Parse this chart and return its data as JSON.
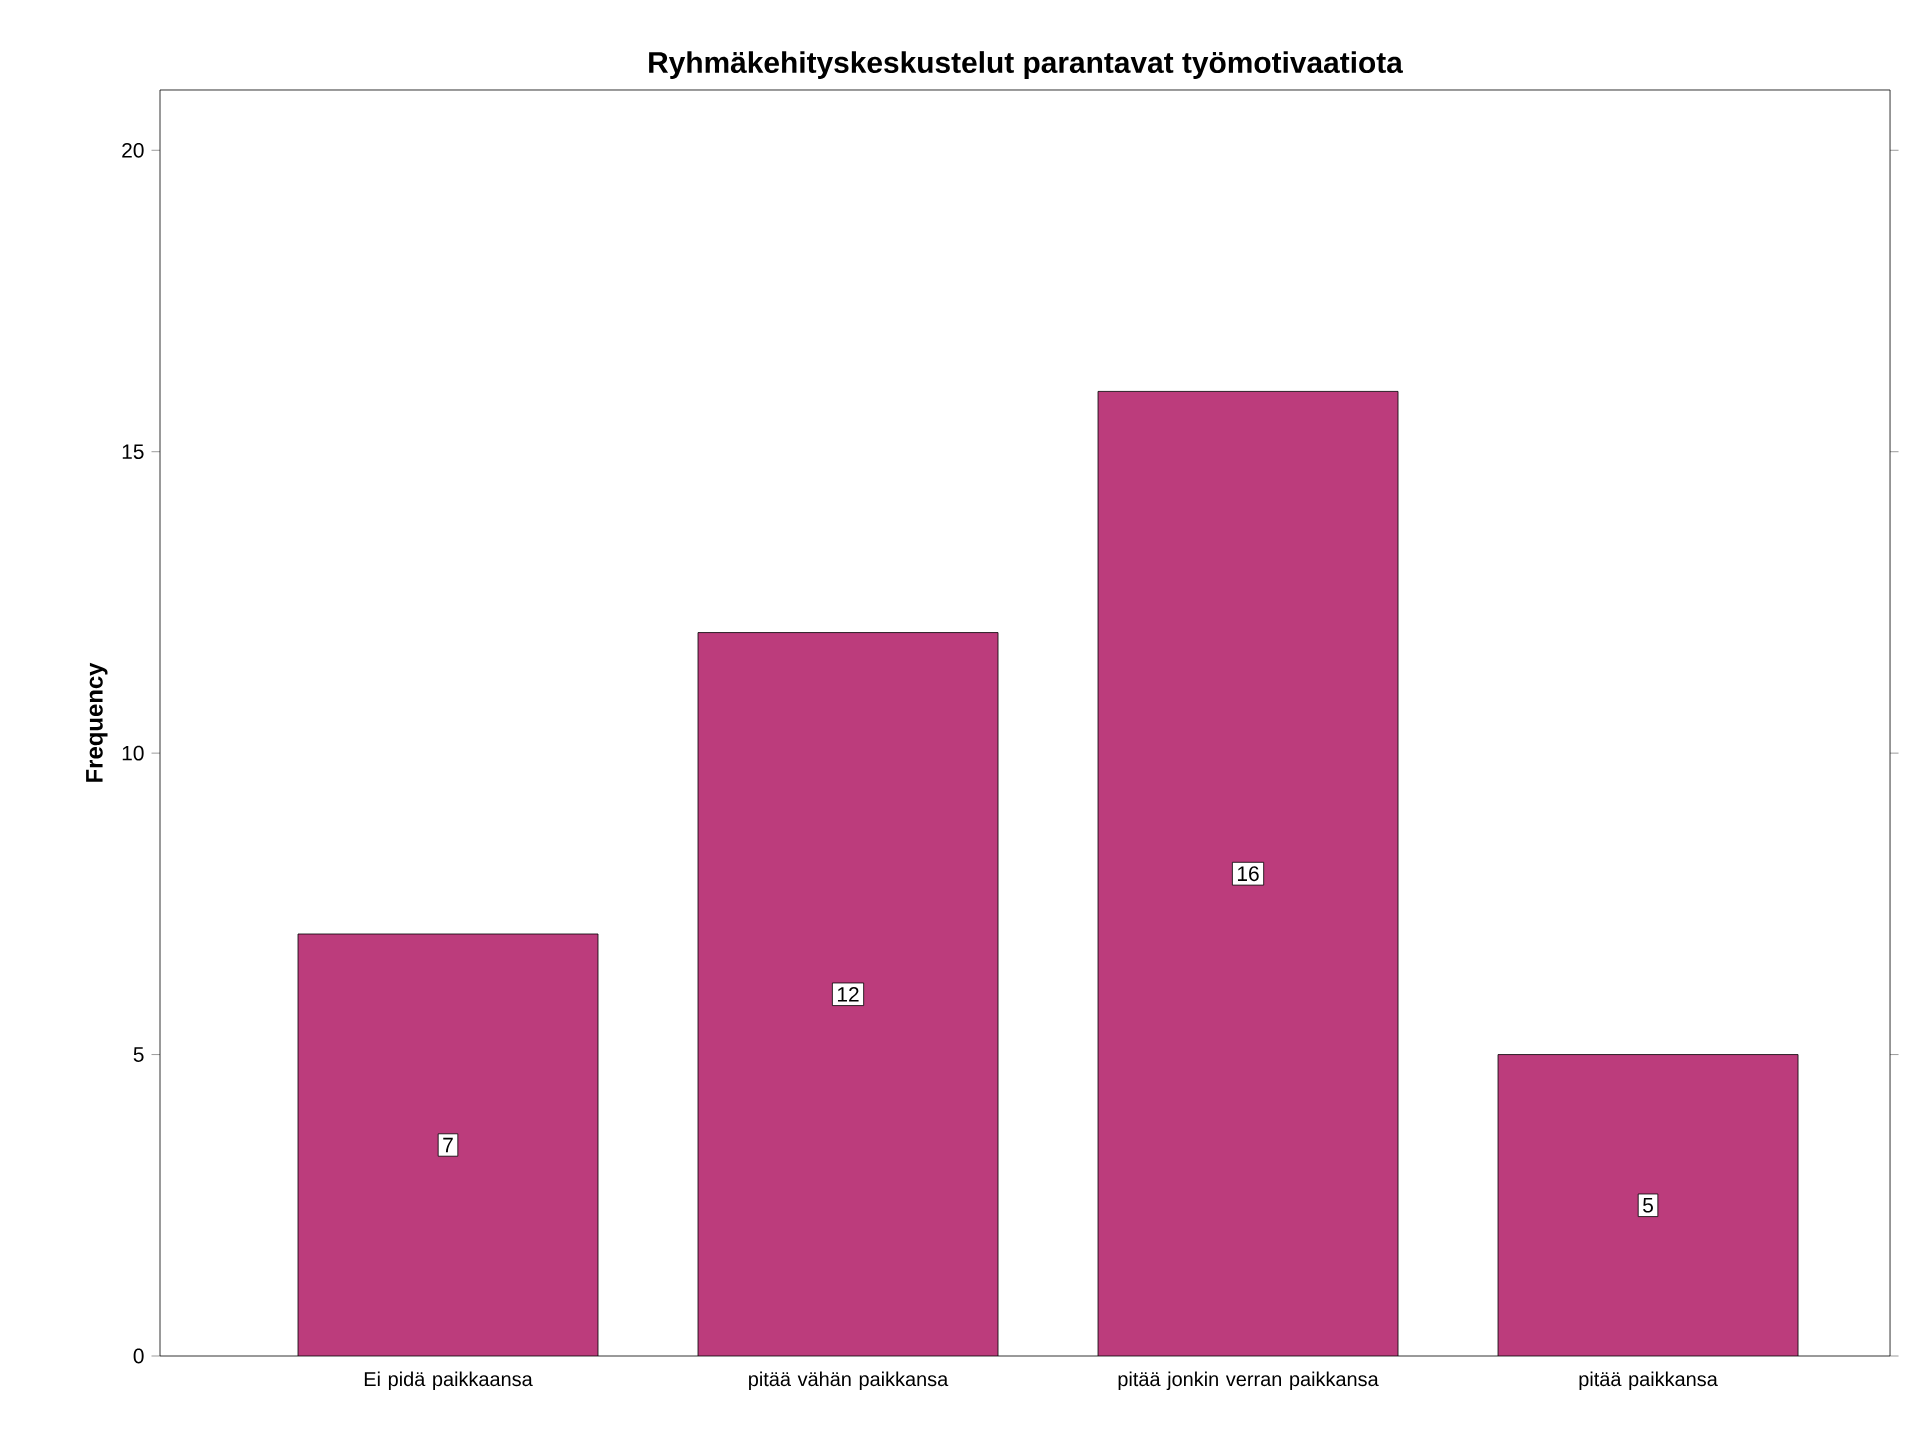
{
  "chart_data": {
    "type": "bar",
    "title": "Ryhmäkehityskeskustelut parantavat työmotivaatiota",
    "ylabel": "Frequency",
    "categories": [
      "Ei pidä paikkaansa",
      "pitää vähän paikkansa",
      "pitää jonkin verran paikkansa",
      "pitää paikkansa"
    ],
    "values": [
      7,
      12,
      16,
      5
    ],
    "color": "#bc3c7c",
    "ylim": [
      0,
      21
    ],
    "yticks": [
      0,
      5,
      10,
      15,
      20
    ],
    "grid": false,
    "data_labels": true
  }
}
